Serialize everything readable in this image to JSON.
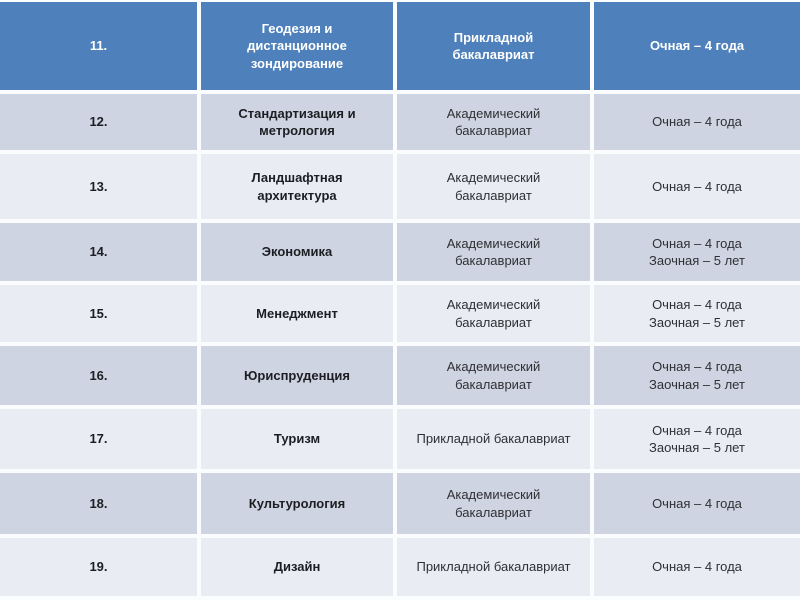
{
  "table": {
    "rows": [
      {
        "number": "11.",
        "program": "Геодезия и\nдистанционное\nзондирование",
        "degree": "Прикладной\nбакалавриат",
        "form": "Очная – 4 года"
      },
      {
        "number": "12.",
        "program": "Стандартизация и\nметрология",
        "degree": "Академический\nбакалавриат",
        "form": "Очная – 4 года"
      },
      {
        "number": "13.",
        "program": "Ландшафтная\nархитектура",
        "degree": "Академический\nбакалавриат",
        "form": "Очная – 4 года"
      },
      {
        "number": "14.",
        "program": "Экономика",
        "degree": "Академический\nбакалавриат",
        "form": "Очная – 4 года\nЗаочная – 5 лет"
      },
      {
        "number": "15.",
        "program": "Менеджмент",
        "degree": "Академический\nбакалавриат",
        "form": "Очная – 4 года\nЗаочная – 5 лет"
      },
      {
        "number": "16.",
        "program": "Юриспруденция",
        "degree": "Академический\nбакалавриат",
        "form": "Очная – 4 года\nЗаочная – 5 лет"
      },
      {
        "number": "17.",
        "program": "Туризм",
        "degree": "Прикладной бакалавриат",
        "form": "Очная – 4 года\nЗаочная – 5 лет"
      },
      {
        "number": "18.",
        "program": "Культурология",
        "degree": "Академический\nбакалавриат",
        "form": "Очная – 4 года"
      },
      {
        "number": "19.",
        "program": "Дизайн",
        "degree": "Прикладной бакалавриат",
        "form": "Очная – 4 года"
      }
    ]
  },
  "colors": {
    "header_bg": "#4e80bb",
    "band_dark": "#cfd4e2",
    "band_light": "#e9ecf3",
    "grid_line": "#fbfcfe",
    "header_text": "#ffffff",
    "body_text": "#1c1e22",
    "secondary_text": "#2e3033"
  }
}
